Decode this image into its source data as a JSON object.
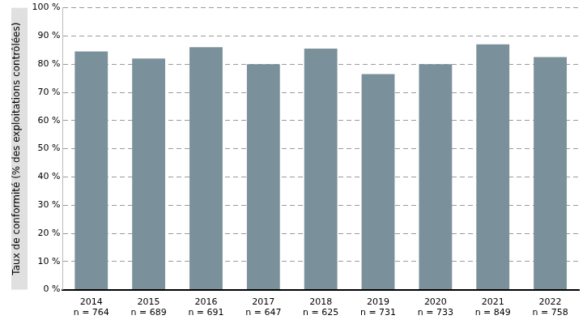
{
  "chart_data": {
    "type": "bar",
    "ylabel": "Taux de conformité (% des exploitations contrôlées)",
    "categories": [
      [
        "2014",
        "n = 764"
      ],
      [
        "2015",
        "n = 689"
      ],
      [
        "2016",
        "n = 691"
      ],
      [
        "2017",
        "n = 647"
      ],
      [
        "2018",
        "n = 625"
      ],
      [
        "2019",
        "n = 731"
      ],
      [
        "2020",
        "n = 733"
      ],
      [
        "2021",
        "n = 849"
      ],
      [
        "2022",
        "n = 758"
      ]
    ],
    "values": [
      84.5,
      82,
      86,
      80,
      85.5,
      76.5,
      80,
      87,
      82.5
    ],
    "color": "#7a909a",
    "ylim": [
      0,
      100
    ],
    "yticks": [
      {
        "value": 0,
        "label": "0 %"
      },
      {
        "value": 10,
        "label": "10 %"
      },
      {
        "value": 20,
        "label": "20 %"
      },
      {
        "value": 30,
        "label": "30 %"
      },
      {
        "value": 40,
        "label": "40 %"
      },
      {
        "value": 50,
        "label": "50 %"
      },
      {
        "value": 60,
        "label": "60 %"
      },
      {
        "value": 70,
        "label": "70 %"
      },
      {
        "value": 80,
        "label": "80 %"
      },
      {
        "value": 90,
        "label": "90 %"
      },
      {
        "value": 100,
        "label": "100 %"
      }
    ],
    "grid": true
  }
}
